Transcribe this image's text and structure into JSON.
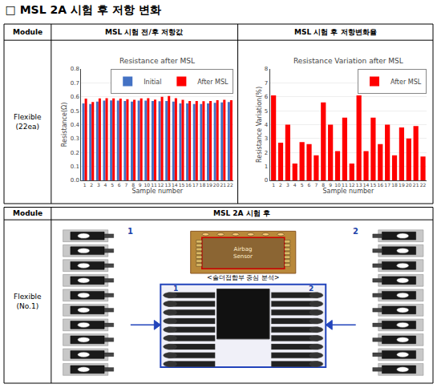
{
  "title": "□ MSL 2A 시험 후 저항 변화",
  "annotations": [
    "Module",
    "MSL 시험 전/후 저항값",
    "MSL 시험 후 저항변화율",
    "Flexible\n(22ea)",
    "Module",
    "MSL 2A 시험 후",
    "Flexible\n(No.1)",
    "1",
    "2",
    "Airbag\nSensor",
    "<솔더접합부 중심 분석>",
    "1",
    "2"
  ],
  "chart_data": [
    {
      "type": "bar",
      "title": "Resistance after MSL",
      "xlabel": "Sample number",
      "ylabel": "Resistance(Ω)",
      "categories": [
        "1",
        "2",
        "3",
        "4",
        "5",
        "6",
        "7",
        "8",
        "9",
        "10",
        "11",
        "12",
        "13",
        "14",
        "15",
        "16",
        "17",
        "18",
        "19",
        "20",
        "21",
        "22"
      ],
      "series": [
        {
          "name": "Initial",
          "color": "#4472C4",
          "values": [
            0.553,
            0.548,
            0.565,
            0.572,
            0.574,
            0.572,
            0.57,
            0.565,
            0.572,
            0.572,
            0.57,
            0.568,
            0.57,
            0.565,
            0.553,
            0.553,
            0.548,
            0.548,
            0.553,
            0.557,
            0.56,
            0.562
          ]
        },
        {
          "name": "After MSL",
          "color": "#FF0000",
          "values": [
            0.587,
            0.563,
            0.588,
            0.59,
            0.588,
            0.587,
            0.582,
            0.578,
            0.588,
            0.59,
            0.58,
            0.6,
            0.605,
            0.59,
            0.578,
            0.57,
            0.57,
            0.568,
            0.57,
            0.575,
            0.578,
            0.575
          ]
        }
      ],
      "ylim": [
        0,
        0.8
      ],
      "yticks": [
        {
          "value": 0,
          "label": "0.0"
        },
        0.1,
        0.2,
        0.3,
        0.4,
        0.5,
        0.6,
        0.7,
        0.8
      ],
      "grid": true,
      "legend": "upper right"
    },
    {
      "type": "bar",
      "title": "Resistance Variation after MSL",
      "xlabel": "Sample number",
      "ylabel": "Resistance Variation(%)",
      "categories": [
        "1",
        "2",
        "3",
        "4",
        "5",
        "6",
        "7",
        "8",
        "9",
        "10",
        "11",
        "12",
        "13",
        "14",
        "15",
        "16",
        "17",
        "18",
        "19",
        "20",
        "21",
        "22"
      ],
      "series": [
        {
          "name": "After MSL",
          "color": "#FF0000",
          "values": [
            6.1,
            2.7,
            4.0,
            1.2,
            2.75,
            2.6,
            1.8,
            5.6,
            4.0,
            2.1,
            4.5,
            1.2,
            6.1,
            2.1,
            4.5,
            2.6,
            4.0,
            1.8,
            3.8,
            3.0,
            3.9,
            1.7
          ]
        }
      ],
      "ylim": [
        0,
        8
      ],
      "yticks": [
        0,
        1,
        2,
        3,
        4,
        5,
        6,
        7,
        8
      ],
      "grid": true,
      "legend": "upper right"
    }
  ]
}
